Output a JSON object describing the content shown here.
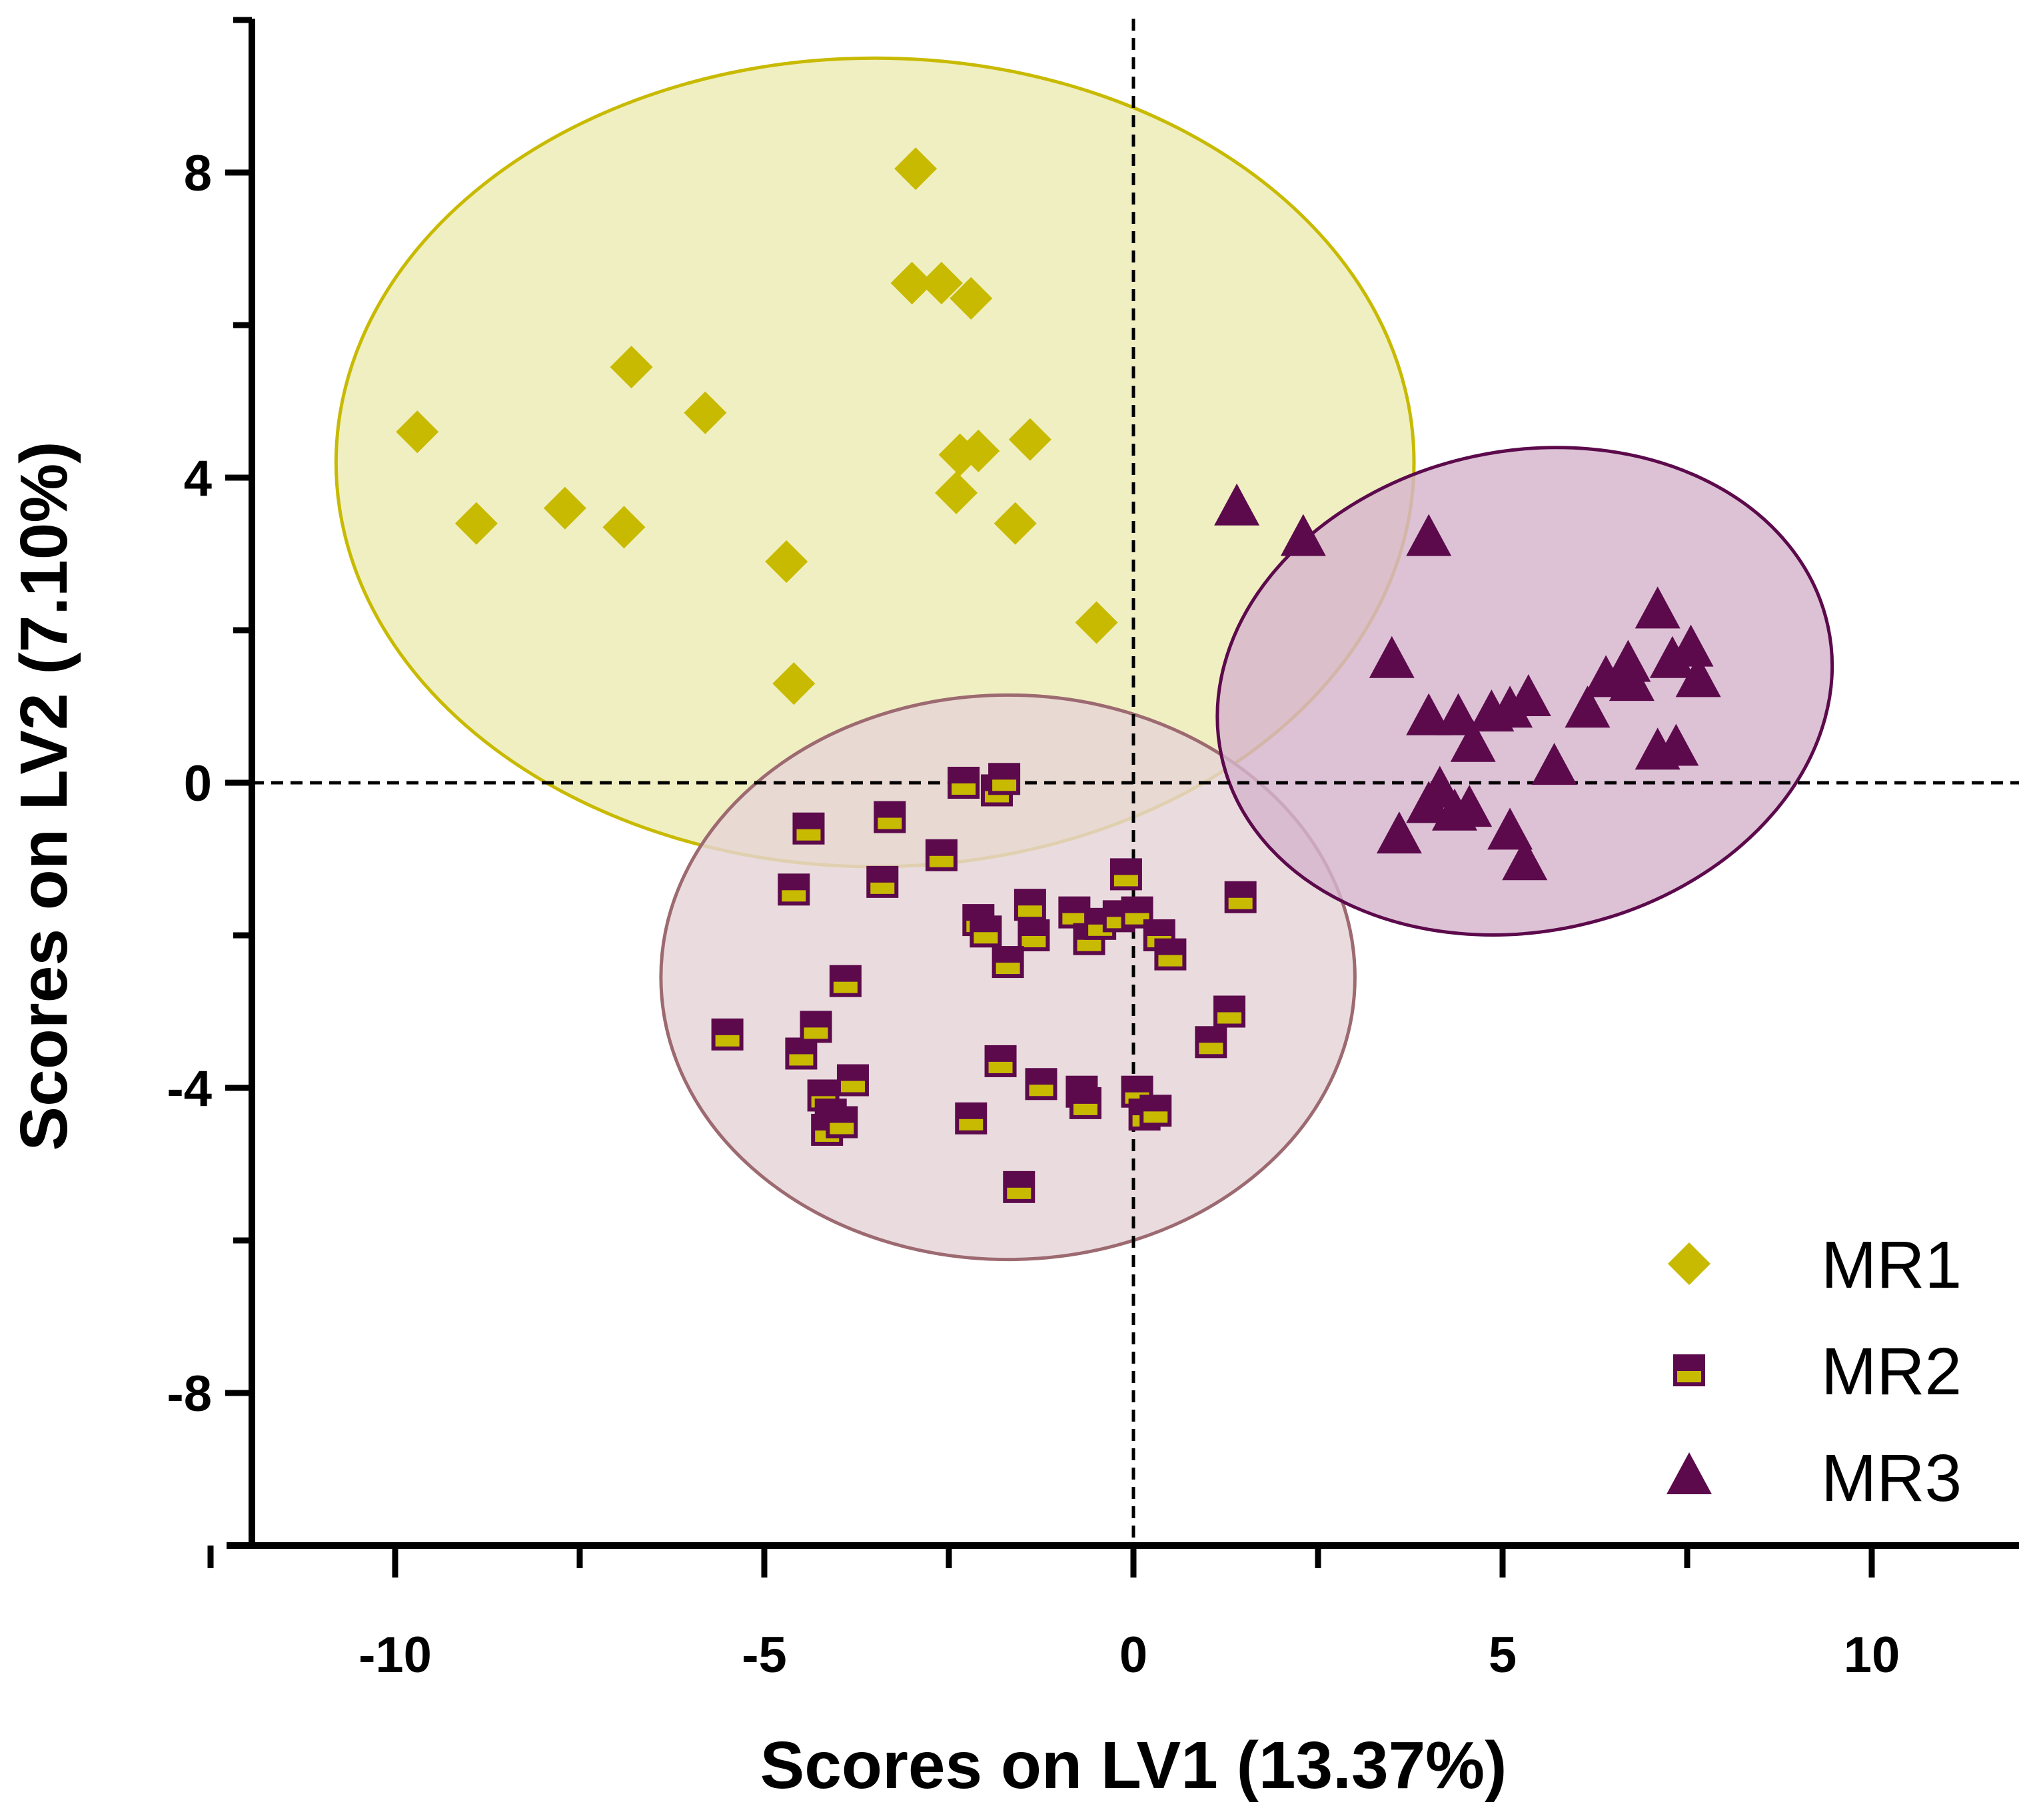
{
  "chart_data": {
    "type": "scatter",
    "title": "",
    "xlabel": "Scores on LV1 (13.37%)",
    "ylabel": "Scores on LV2 (7.10%)",
    "xlim": [
      -12,
      12
    ],
    "ylim": [
      -10,
      10
    ],
    "xticks": [
      -10,
      -5,
      0,
      5,
      10
    ],
    "yticks": [
      8,
      4,
      0,
      -4,
      -8
    ],
    "xtick_labels": [
      "-10",
      "-5",
      "0",
      "5",
      "10"
    ],
    "ytick_labels": [
      "8",
      "4",
      "0",
      "-4",
      "-8"
    ],
    "reference_lines": {
      "x": 0,
      "y": 0,
      "style": "dashed"
    },
    "legend_position": "bottom-right",
    "series": [
      {
        "name": "MR1",
        "marker": "diamond",
        "color": "#C8BA00",
        "edge_color": "#C8BA00",
        "ellipse": {
          "center": [
            -3.5,
            4.2
          ],
          "radius": [
            7.3,
            5.3
          ],
          "fill": "#EDEBB5",
          "stroke": "#C8BA00"
        },
        "points": [
          [
            -9.7,
            4.6
          ],
          [
            -8.9,
            3.4
          ],
          [
            -7.7,
            3.6
          ],
          [
            -6.9,
            3.35
          ],
          [
            -6.8,
            5.45
          ],
          [
            -5.8,
            4.85
          ],
          [
            -4.7,
            2.9
          ],
          [
            -4.6,
            1.3
          ],
          [
            -2.95,
            8.05
          ],
          [
            -3.0,
            6.55
          ],
          [
            -2.6,
            6.55
          ],
          [
            -2.2,
            6.35
          ],
          [
            -2.35,
            4.3
          ],
          [
            -2.1,
            4.35
          ],
          [
            -2.4,
            3.8
          ],
          [
            -1.4,
            4.5
          ],
          [
            -1.6,
            3.4
          ],
          [
            -0.5,
            2.1
          ]
        ]
      },
      {
        "name": "MR2",
        "marker": "square",
        "color": "#C8BA00",
        "edge_color": "#5C0A4C",
        "ellipse": {
          "center": [
            -1.7,
            -2.55
          ],
          "radius": [
            4.7,
            3.7
          ],
          "fill": "#E5D4D7",
          "stroke": "#9C6A70"
        },
        "points": [
          [
            -4.4,
            -0.6
          ],
          [
            -3.3,
            -0.45
          ],
          [
            -2.6,
            -0.95
          ],
          [
            -2.3,
            0.0
          ],
          [
            -1.85,
            -0.1
          ],
          [
            -1.75,
            0.05
          ],
          [
            -0.1,
            -1.2
          ],
          [
            -4.6,
            -1.4
          ],
          [
            -3.4,
            -1.3
          ],
          [
            1.45,
            -1.5
          ],
          [
            -2.1,
            -1.8
          ],
          [
            -2.0,
            -1.95
          ],
          [
            -1.4,
            -1.6
          ],
          [
            -1.35,
            -2.0
          ],
          [
            -0.8,
            -1.7
          ],
          [
            -0.6,
            -2.05
          ],
          [
            -0.45,
            -1.85
          ],
          [
            -0.2,
            -1.75
          ],
          [
            0.05,
            -1.7
          ],
          [
            0.35,
            -2.0
          ],
          [
            0.5,
            -2.25
          ],
          [
            -1.7,
            -2.35
          ],
          [
            -3.9,
            -2.6
          ],
          [
            -5.5,
            -3.3
          ],
          [
            -4.5,
            -3.55
          ],
          [
            -4.3,
            -3.2
          ],
          [
            -3.8,
            -3.9
          ],
          [
            -4.2,
            -4.1
          ],
          [
            -4.1,
            -4.35
          ],
          [
            -4.15,
            -4.55
          ],
          [
            -3.95,
            -4.45
          ],
          [
            -1.8,
            -3.65
          ],
          [
            -1.25,
            -3.95
          ],
          [
            -0.7,
            -4.05
          ],
          [
            -0.65,
            -4.2
          ],
          [
            0.05,
            -4.05
          ],
          [
            0.15,
            -4.35
          ],
          [
            0.3,
            -4.3
          ],
          [
            -2.2,
            -4.4
          ],
          [
            1.05,
            -3.4
          ],
          [
            1.3,
            -3.0
          ],
          [
            -1.55,
            -5.3
          ]
        ]
      },
      {
        "name": "MR3",
        "marker": "triangle",
        "color": "#5C0A4C",
        "edge_color": "#5C0A4C",
        "ellipse": {
          "center": [
            5.3,
            1.2
          ],
          "radius": [
            4.2,
            3.15
          ],
          "angle_deg": -12,
          "fill": "#D6B4CD",
          "stroke": "#5C0A4C"
        },
        "points": [
          [
            1.4,
            3.6
          ],
          [
            2.3,
            3.2
          ],
          [
            4.0,
            3.2
          ],
          [
            3.5,
            1.6
          ],
          [
            4.0,
            0.85
          ],
          [
            4.4,
            0.85
          ],
          [
            4.6,
            0.5
          ],
          [
            4.85,
            0.9
          ],
          [
            5.1,
            0.95
          ],
          [
            5.35,
            1.1
          ],
          [
            5.7,
            0.2
          ],
          [
            6.15,
            0.95
          ],
          [
            6.4,
            1.35
          ],
          [
            6.7,
            1.55
          ],
          [
            6.75,
            1.3
          ],
          [
            7.1,
            2.25
          ],
          [
            7.3,
            1.6
          ],
          [
            7.55,
            1.75
          ],
          [
            7.65,
            1.35
          ],
          [
            7.1,
            0.4
          ],
          [
            7.35,
            0.45
          ],
          [
            3.6,
            -0.7
          ],
          [
            4.0,
            -0.3
          ],
          [
            4.15,
            -0.1
          ],
          [
            4.35,
            -0.4
          ],
          [
            4.55,
            -0.35
          ],
          [
            5.1,
            -0.65
          ],
          [
            5.3,
            -1.05
          ]
        ]
      }
    ]
  }
}
